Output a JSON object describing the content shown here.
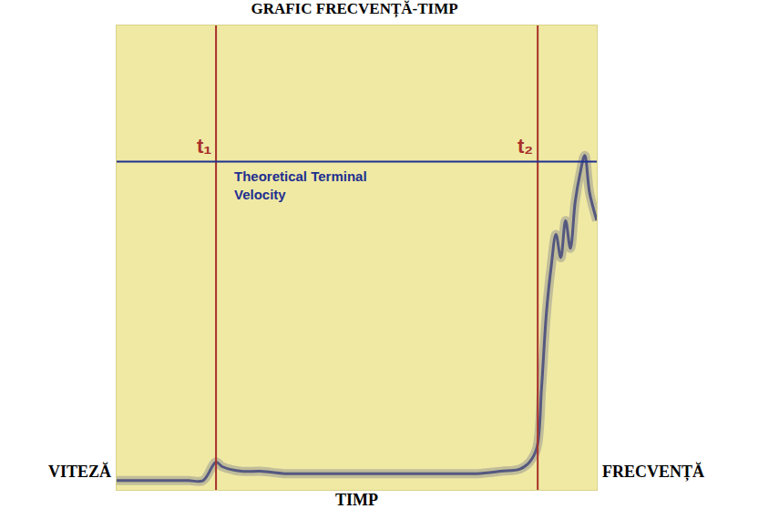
{
  "chart_data": {
    "type": "line",
    "title": "GRAFIC FRECVENȚĂ-TIMP",
    "xlabel": "TIMP",
    "ylabel": "VITEZĂ",
    "y2label": "FRECVENȚĂ",
    "x": [
      0,
      5,
      10,
      15,
      18,
      20.7,
      22,
      26,
      30,
      35,
      40,
      45,
      50,
      55,
      60,
      65,
      70,
      75,
      80,
      84,
      86,
      87.5,
      88.5,
      89.5,
      90.5,
      91.5,
      92.5,
      93.5,
      94.5,
      95.5,
      96.5,
      97.5,
      98.5,
      100
    ],
    "values": [
      2,
      2,
      2,
      2,
      2,
      6,
      5,
      4,
      4,
      3.5,
      3.5,
      3.5,
      3.5,
      3.5,
      3.5,
      3.5,
      3.5,
      3.5,
      4,
      4.5,
      6,
      9,
      22,
      38,
      48,
      55,
      50,
      58,
      52,
      62,
      68,
      72,
      64,
      58
    ],
    "color": "#3a3f7a",
    "xlim": [
      0,
      100
    ],
    "ylim": [
      0,
      100
    ],
    "tick_labels": false,
    "grid": false,
    "vlines": [
      {
        "x": 20.7,
        "label": "t₁",
        "color": "#a8302a"
      },
      {
        "x": 87.7,
        "label": "t₂",
        "color": "#a8302a"
      }
    ],
    "hline": {
      "y": 70.7,
      "label": "Theoretical Terminal Velocity",
      "color": "#1f2f8f"
    }
  }
}
